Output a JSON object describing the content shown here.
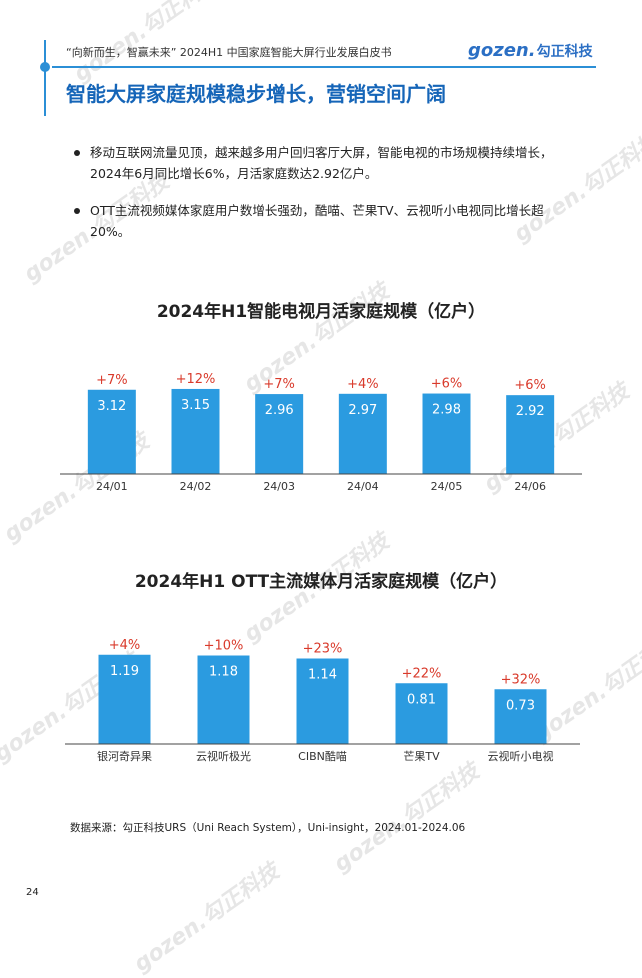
{
  "header": {
    "text": "“向新而生，智赢未来” 2024H1 中国家庭智能大屏行业发展白皮书",
    "logo_brand": "gozen.",
    "logo_cn": "勾正科技"
  },
  "watermark": "gozen.勾正科技",
  "page_title": "智能大屏家庭规模稳步增长，营销空间广阔",
  "bullets": [
    "移动互联网流量见顶，越来越多用户回归客厅大屏，智能电视的市场规模持续增长，2024年6月同比增长6%，月活家庭数达2.92亿户。",
    "OTT主流视频媒体家庭用户数增长强劲，酷喵、芒果TV、云视听小电视同比增长超20%。"
  ],
  "chart_data": [
    {
      "type": "bar",
      "title": "2024年H1智能电视月活家庭规模（亿户）",
      "categories": [
        "24/01",
        "24/02",
        "24/03",
        "24/04",
        "24/05",
        "24/06"
      ],
      "values": [
        3.12,
        3.15,
        2.96,
        2.97,
        2.98,
        2.92
      ],
      "growth_labels": [
        "+7%",
        "+12%",
        "+7%",
        "+4%",
        "+6%",
        "+6%"
      ],
      "bar_color": "#2b9be0",
      "growth_color": "#d93a2b",
      "grid": false
    },
    {
      "type": "bar",
      "title": "2024年H1 OTT主流媒体月活家庭规模（亿户）",
      "categories": [
        "银河奇异果",
        "云视听极光",
        "CIBN酷喵",
        "芒果TV",
        "云视听小电视"
      ],
      "values": [
        1.19,
        1.18,
        1.14,
        0.81,
        0.73
      ],
      "growth_labels": [
        "+4%",
        "+10%",
        "+23%",
        "+22%",
        "+32%"
      ],
      "bar_color": "#2b9be0",
      "growth_color": "#d93a2b",
      "grid": false
    }
  ],
  "source_note": "数据来源：勾正科技URS（Uni Reach System），Uni-insight，2024.01-2024.06",
  "page_number": "24"
}
